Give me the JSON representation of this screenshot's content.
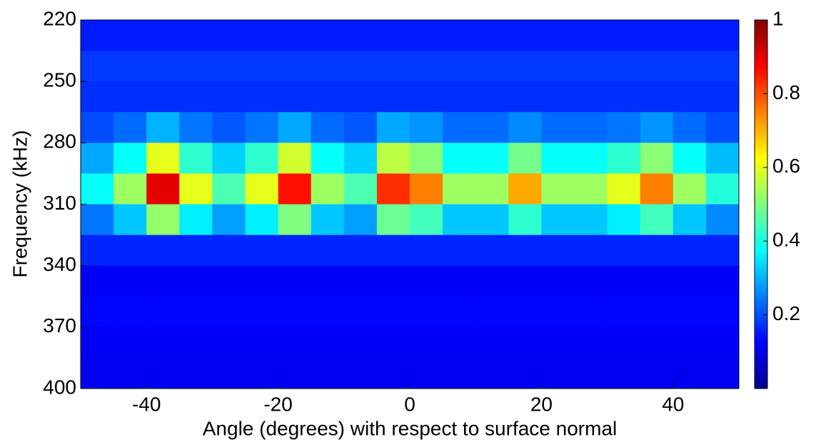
{
  "chart_data": {
    "type": "heatmap",
    "xlabel": "Angle (degrees) with respect to surface normal",
    "ylabel": "Frequency (kHz)",
    "x": [
      -47.5,
      -42.5,
      -37.5,
      -32.5,
      -27.5,
      -22.5,
      -17.5,
      -12.5,
      -7.5,
      -2.5,
      2.5,
      7.5,
      12.5,
      17.5,
      22.5,
      27.5,
      32.5,
      37.5,
      42.5,
      47.5
    ],
    "y": [
      227.5,
      242.5,
      257.5,
      272.5,
      287.5,
      302.5,
      317.5,
      332.5,
      347.5,
      362.5,
      377.5,
      392.5
    ],
    "z": [
      [
        0.15,
        0.15,
        0.15,
        0.15,
        0.15,
        0.15,
        0.15,
        0.15,
        0.15,
        0.15,
        0.15,
        0.15,
        0.15,
        0.15,
        0.15,
        0.15,
        0.15,
        0.15,
        0.15,
        0.15
      ],
      [
        0.18,
        0.18,
        0.18,
        0.18,
        0.18,
        0.18,
        0.18,
        0.18,
        0.18,
        0.18,
        0.18,
        0.18,
        0.18,
        0.18,
        0.18,
        0.18,
        0.18,
        0.18,
        0.18,
        0.18
      ],
      [
        0.17,
        0.17,
        0.17,
        0.17,
        0.17,
        0.17,
        0.17,
        0.17,
        0.17,
        0.17,
        0.17,
        0.17,
        0.17,
        0.17,
        0.17,
        0.17,
        0.17,
        0.17,
        0.17,
        0.17
      ],
      [
        0.2,
        0.23,
        0.3,
        0.24,
        0.21,
        0.24,
        0.29,
        0.23,
        0.21,
        0.29,
        0.27,
        0.23,
        0.23,
        0.26,
        0.23,
        0.23,
        0.24,
        0.27,
        0.23,
        0.2
      ],
      [
        0.29,
        0.38,
        0.6,
        0.42,
        0.33,
        0.42,
        0.58,
        0.38,
        0.33,
        0.56,
        0.51,
        0.38,
        0.38,
        0.49,
        0.38,
        0.38,
        0.42,
        0.51,
        0.38,
        0.31
      ],
      [
        0.38,
        0.53,
        0.9,
        0.6,
        0.45,
        0.6,
        0.86,
        0.53,
        0.45,
        0.83,
        0.75,
        0.53,
        0.53,
        0.71,
        0.53,
        0.53,
        0.6,
        0.75,
        0.53,
        0.41
      ],
      [
        0.24,
        0.32,
        0.52,
        0.36,
        0.28,
        0.36,
        0.5,
        0.32,
        0.28,
        0.48,
        0.44,
        0.32,
        0.32,
        0.42,
        0.32,
        0.32,
        0.36,
        0.44,
        0.32,
        0.26
      ],
      [
        0.16,
        0.16,
        0.16,
        0.16,
        0.16,
        0.16,
        0.16,
        0.16,
        0.16,
        0.16,
        0.16,
        0.16,
        0.16,
        0.16,
        0.16,
        0.16,
        0.16,
        0.16,
        0.16,
        0.16
      ],
      [
        0.12,
        0.12,
        0.12,
        0.12,
        0.12,
        0.12,
        0.12,
        0.12,
        0.12,
        0.12,
        0.12,
        0.12,
        0.12,
        0.12,
        0.12,
        0.12,
        0.12,
        0.12,
        0.12,
        0.12
      ],
      [
        0.13,
        0.13,
        0.13,
        0.13,
        0.13,
        0.13,
        0.13,
        0.13,
        0.13,
        0.13,
        0.13,
        0.13,
        0.13,
        0.13,
        0.13,
        0.13,
        0.13,
        0.13,
        0.13,
        0.13
      ],
      [
        0.12,
        0.12,
        0.12,
        0.12,
        0.12,
        0.12,
        0.12,
        0.12,
        0.12,
        0.12,
        0.12,
        0.12,
        0.12,
        0.12,
        0.12,
        0.12,
        0.12,
        0.12,
        0.12,
        0.12
      ],
      [
        0.11,
        0.11,
        0.11,
        0.11,
        0.11,
        0.11,
        0.11,
        0.11,
        0.11,
        0.11,
        0.11,
        0.11,
        0.11,
        0.11,
        0.11,
        0.11,
        0.11,
        0.11,
        0.11,
        0.11
      ]
    ],
    "xlim": [
      -50,
      50
    ],
    "ylim": [
      400,
      220
    ],
    "xticks": [
      -40,
      -20,
      0,
      20,
      40
    ],
    "yticks": [
      220,
      250,
      280,
      310,
      340,
      370,
      400
    ],
    "colormap": "jet",
    "clim": [
      0,
      1
    ],
    "cticks": [
      0.2,
      0.4,
      0.6,
      0.8,
      1
    ]
  }
}
